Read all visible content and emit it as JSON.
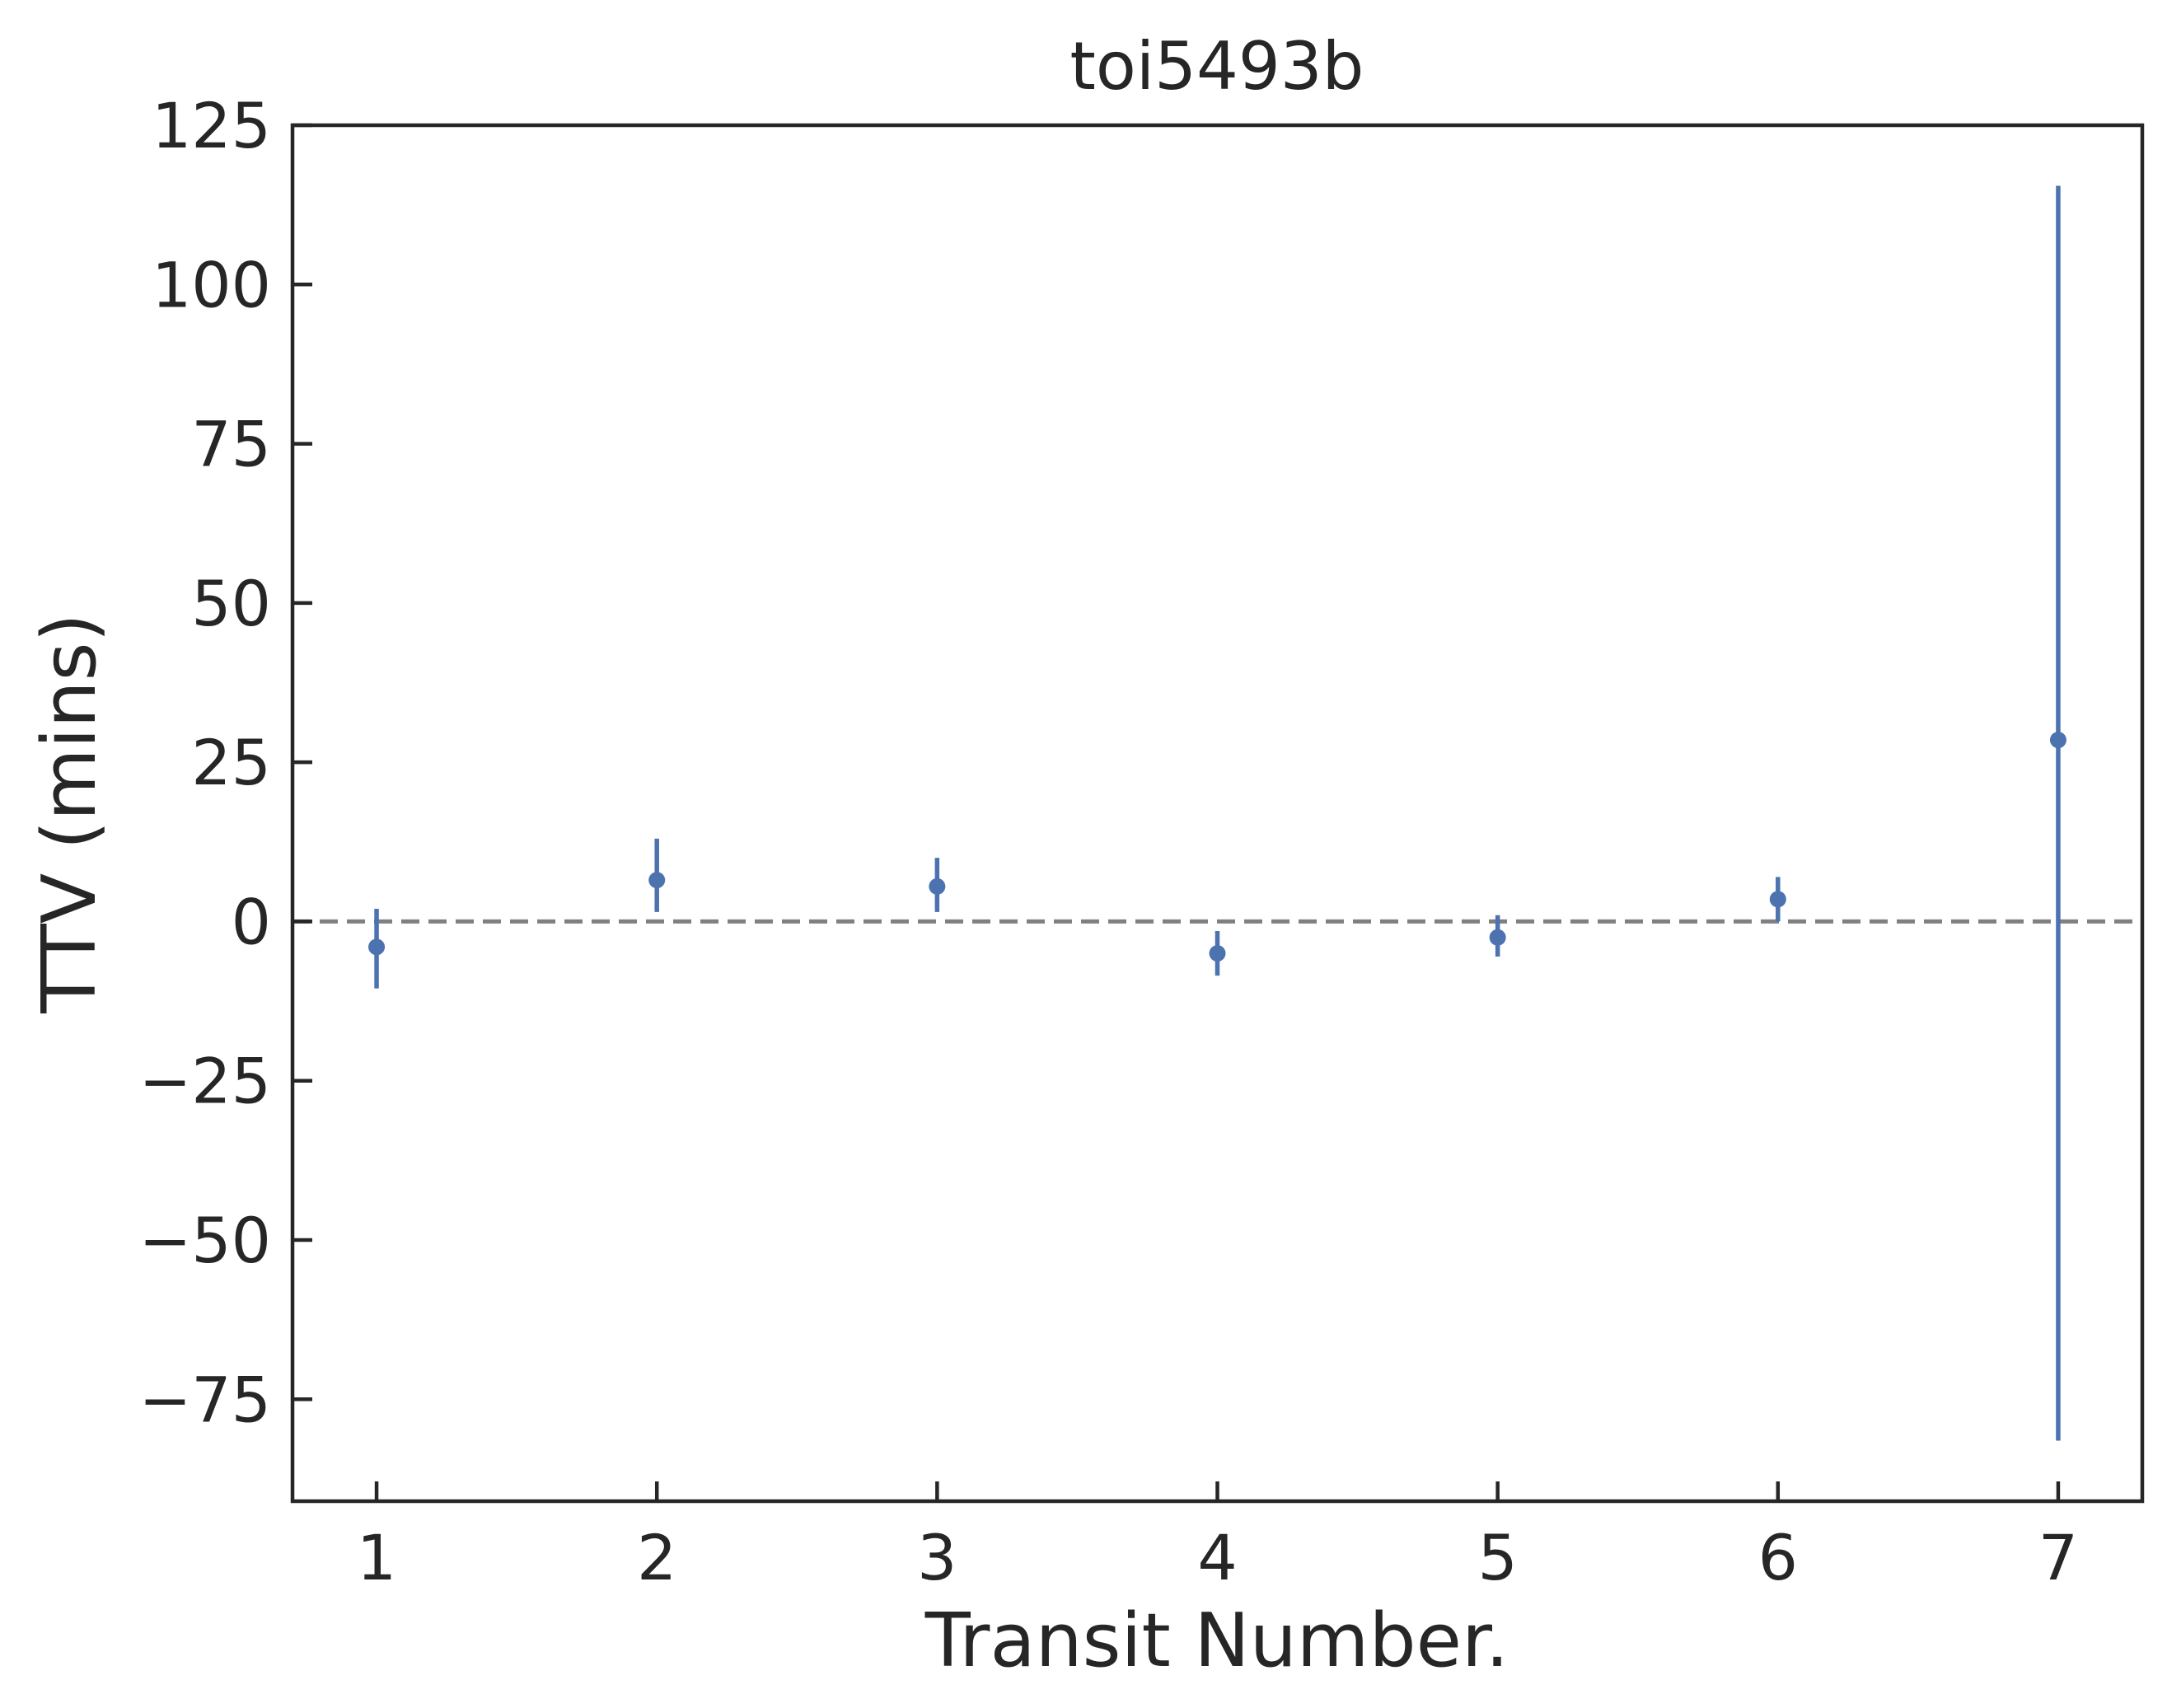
{
  "chart_data": {
    "type": "scatter",
    "title": "toi5493b",
    "xlabel": "Transit Number.",
    "ylabel": "TTV (mins)",
    "xlim": [
      0.7,
      7.3
    ],
    "ylim": [
      -91,
      125
    ],
    "xticks": [
      1,
      2,
      3,
      4,
      5,
      6,
      7
    ],
    "xtick_labels": [
      "1",
      "2",
      "3",
      "4",
      "5",
      "6",
      "7"
    ],
    "yticks": [
      -75,
      -50,
      -25,
      0,
      25,
      50,
      75,
      100,
      125
    ],
    "ytick_labels": [
      "−75",
      "−50",
      "−25",
      "0",
      "25",
      "50",
      "75",
      "100",
      "125"
    ],
    "reference_line": {
      "y": 0,
      "style": "dashed",
      "color": "#808080"
    },
    "series": [
      {
        "color": "#4c72b0",
        "x": [
          1,
          2,
          3,
          4,
          5,
          6,
          7
        ],
        "y": [
          -4,
          6.5,
          5.5,
          -5,
          -2.5,
          3.5,
          28.5
        ],
        "yerr_low": [
          6.5,
          5,
          4,
          3.5,
          3,
          3.5,
          110
        ],
        "yerr_high": [
          6,
          6.5,
          4.5,
          3.5,
          3.5,
          3.5,
          87
        ]
      }
    ],
    "grid": false,
    "tick_direction": "in"
  }
}
